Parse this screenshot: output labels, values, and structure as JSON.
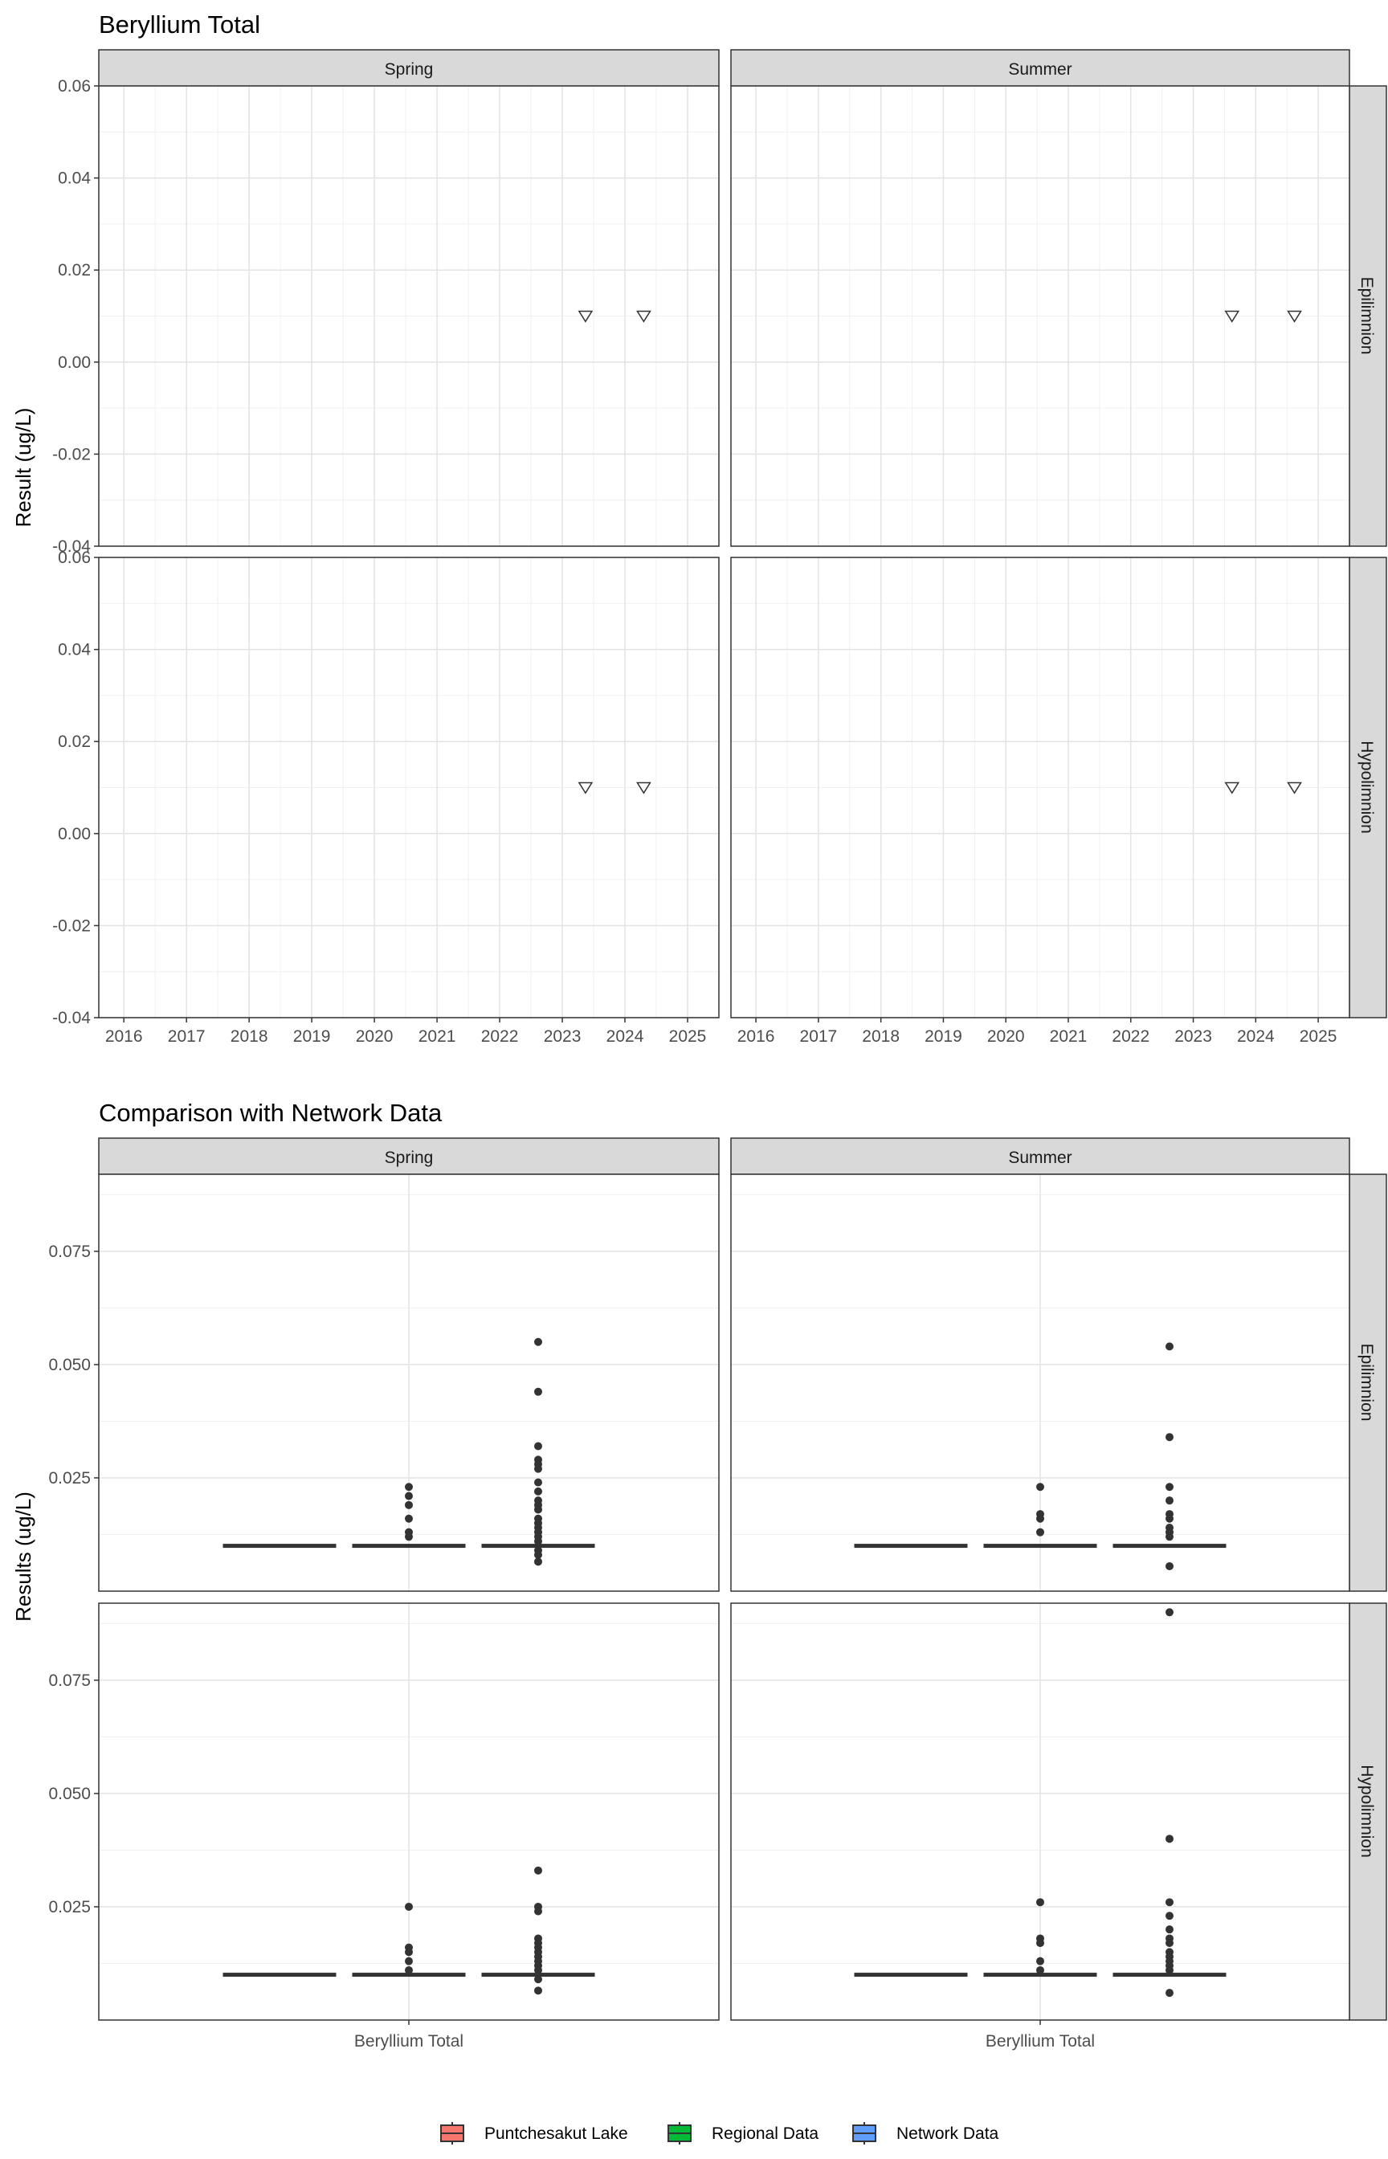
{
  "top": {
    "title": "Beryllium Total",
    "ylabel": "Result (ug/L)",
    "col_strips": [
      "Spring",
      "Summer"
    ],
    "row_strips": [
      "Epilimnion",
      "Hypolimnion"
    ]
  },
  "bottom": {
    "title": "Comparison with Network Data",
    "ylabel": "Results (ug/L)",
    "col_strips": [
      "Spring",
      "Summer"
    ],
    "row_strips": [
      "Epilimnion",
      "Hypolimnion"
    ],
    "xlabel": "Beryllium Total"
  },
  "legend": {
    "items": [
      {
        "label": "Puntchesakut Lake",
        "color": "#f8766d"
      },
      {
        "label": "Regional Data",
        "color": "#00ba38"
      },
      {
        "label": "Network Data",
        "color": "#619cff"
      }
    ]
  },
  "chart_data": [
    {
      "type": "scatter",
      "title": "Beryllium Total",
      "ylabel": "Result (ug/L)",
      "xlabel": "",
      "xlim": [
        2015.6,
        2025.5
      ],
      "ylim": [
        -0.04,
        0.06
      ],
      "x_ticks": [
        "2016",
        "2017",
        "2018",
        "2019",
        "2020",
        "2021",
        "2022",
        "2023",
        "2024",
        "2025"
      ],
      "y_ticks": [
        "-0.04",
        "-0.02",
        "0.00",
        "0.02",
        "0.04",
        "0.06"
      ],
      "marker": "open-down-triangle",
      "panels": [
        {
          "season": "Spring",
          "layer": "Epilimnion",
          "points": [
            {
              "x": 2023.37,
              "y": 0.01
            },
            {
              "x": 2024.3,
              "y": 0.01
            }
          ]
        },
        {
          "season": "Summer",
          "layer": "Epilimnion",
          "points": [
            {
              "x": 2023.62,
              "y": 0.01
            },
            {
              "x": 2024.62,
              "y": 0.01
            }
          ]
        },
        {
          "season": "Spring",
          "layer": "Hypolimnion",
          "points": [
            {
              "x": 2023.37,
              "y": 0.01
            },
            {
              "x": 2024.3,
              "y": 0.01
            }
          ]
        },
        {
          "season": "Summer",
          "layer": "Hypolimnion",
          "points": [
            {
              "x": 2023.62,
              "y": 0.01
            },
            {
              "x": 2024.62,
              "y": 0.01
            }
          ]
        }
      ],
      "grid": true
    },
    {
      "type": "box",
      "title": "Comparison with Network Data",
      "ylabel": "Results (ug/L)",
      "categories": [
        "Beryllium Total"
      ],
      "groups": [
        "Puntchesakut Lake",
        "Regional Data",
        "Network Data"
      ],
      "y_ticks": [
        "0.025",
        "0.050",
        "0.075"
      ],
      "panels": [
        {
          "season": "Spring",
          "layer": "Epilimnion",
          "ylim": [
            0,
            0.092
          ],
          "boxes": [
            {
              "group": "Puntchesakut Lake",
              "median": 0.01,
              "outliers": []
            },
            {
              "group": "Regional Data",
              "median": 0.01,
              "outliers": [
                0.023,
                0.021,
                0.019,
                0.016,
                0.013,
                0.012
              ]
            },
            {
              "group": "Network Data",
              "median": 0.01,
              "outliers": [
                0.055,
                0.044,
                0.032,
                0.029,
                0.028,
                0.027,
                0.024,
                0.022,
                0.02,
                0.019,
                0.018,
                0.016,
                0.015,
                0.014,
                0.013,
                0.012,
                0.011,
                0.009,
                0.008,
                0.0065
              ]
            }
          ]
        },
        {
          "season": "Summer",
          "layer": "Epilimnion",
          "ylim": [
            0,
            0.092
          ],
          "boxes": [
            {
              "group": "Puntchesakut Lake",
              "median": 0.01,
              "outliers": []
            },
            {
              "group": "Regional Data",
              "median": 0.01,
              "outliers": [
                0.023,
                0.017,
                0.016,
                0.013
              ]
            },
            {
              "group": "Network Data",
              "median": 0.01,
              "outliers": [
                0.054,
                0.034,
                0.023,
                0.02,
                0.017,
                0.016,
                0.014,
                0.013,
                0.012,
                0.0055
              ]
            }
          ]
        },
        {
          "season": "Spring",
          "layer": "Hypolimnion",
          "ylim": [
            0,
            0.092
          ],
          "boxes": [
            {
              "group": "Puntchesakut Lake",
              "median": 0.01,
              "outliers": []
            },
            {
              "group": "Regional Data",
              "median": 0.01,
              "outliers": [
                0.025,
                0.016,
                0.015,
                0.013,
                0.011
              ]
            },
            {
              "group": "Network Data",
              "median": 0.01,
              "outliers": [
                0.033,
                0.025,
                0.024,
                0.018,
                0.017,
                0.016,
                0.015,
                0.014,
                0.013,
                0.012,
                0.011,
                0.009,
                0.0065
              ]
            }
          ]
        },
        {
          "season": "Summer",
          "layer": "Hypolimnion",
          "ylim": [
            0,
            0.092
          ],
          "boxes": [
            {
              "group": "Puntchesakut Lake",
              "median": 0.01,
              "outliers": []
            },
            {
              "group": "Regional Data",
              "median": 0.01,
              "outliers": [
                0.026,
                0.018,
                0.017,
                0.013,
                0.011
              ]
            },
            {
              "group": "Network Data",
              "median": 0.01,
              "outliers": [
                0.09,
                0.04,
                0.026,
                0.023,
                0.02,
                0.018,
                0.017,
                0.015,
                0.014,
                0.013,
                0.012,
                0.011,
                0.006
              ]
            }
          ]
        }
      ],
      "grid": true,
      "legend": "bottom"
    }
  ]
}
